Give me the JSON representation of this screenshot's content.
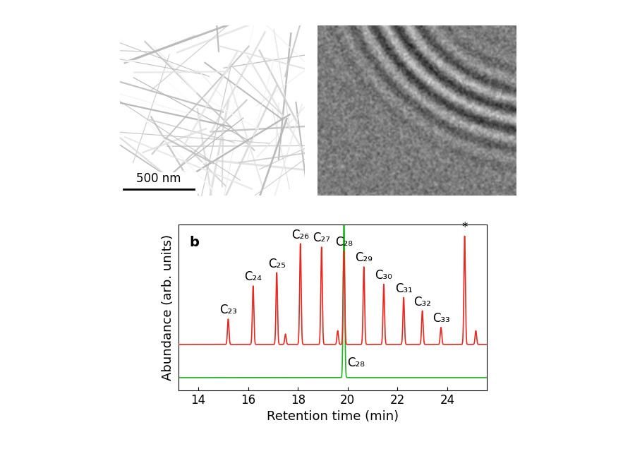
{
  "micrographs": [
    {
      "scale_bar": "500 nm"
    }
  ],
  "chart_data": {
    "type": "line",
    "panel_label": "b",
    "x_label": "Retention time (min)",
    "y_label": "Abundance (arb. units)",
    "xlim": [
      13.2,
      25.6
    ],
    "xticks": [
      14,
      16,
      18,
      20,
      22,
      24
    ],
    "ylim": [
      0,
      100
    ],
    "yticks": [],
    "tick_labels": "x",
    "grid": false,
    "series": [
      {
        "color": "#e8271f",
        "baseline": 27.7,
        "peaks": [
          {
            "x": 15.2,
            "height": 43,
            "label": "C₂₃"
          },
          {
            "x": 16.2,
            "height": 63,
            "label": "C₂₄"
          },
          {
            "x": 17.15,
            "height": 71,
            "label": "C₂₅"
          },
          {
            "x": 17.5,
            "height": 34,
            "label": null
          },
          {
            "x": 18.1,
            "height": 88.5,
            "label": "C₂₆"
          },
          {
            "x": 18.95,
            "height": 86.4,
            "label": "C₂₇"
          },
          {
            "x": 19.6,
            "height": 36,
            "label": null
          },
          {
            "x": 19.85,
            "height": 84,
            "label": "C₂₈"
          },
          {
            "x": 20.65,
            "height": 74.5,
            "label": "C₂₉"
          },
          {
            "x": 21.45,
            "height": 64,
            "label": "C₃₀"
          },
          {
            "x": 22.25,
            "height": 56,
            "label": "C₃₁"
          },
          {
            "x": 23.0,
            "height": 48,
            "label": "C₃₂"
          },
          {
            "x": 23.75,
            "height": 38,
            "label": "C₃₃"
          },
          {
            "x": 24.7,
            "height": 93,
            "label": "*"
          },
          {
            "x": 25.15,
            "height": 36,
            "label": null
          }
        ]
      },
      {
        "color": "#1fb31f",
        "baseline": 7.7,
        "peaks": [
          {
            "x": 19.85,
            "height": 110,
            "label": "C₂₈"
          }
        ]
      }
    ]
  }
}
